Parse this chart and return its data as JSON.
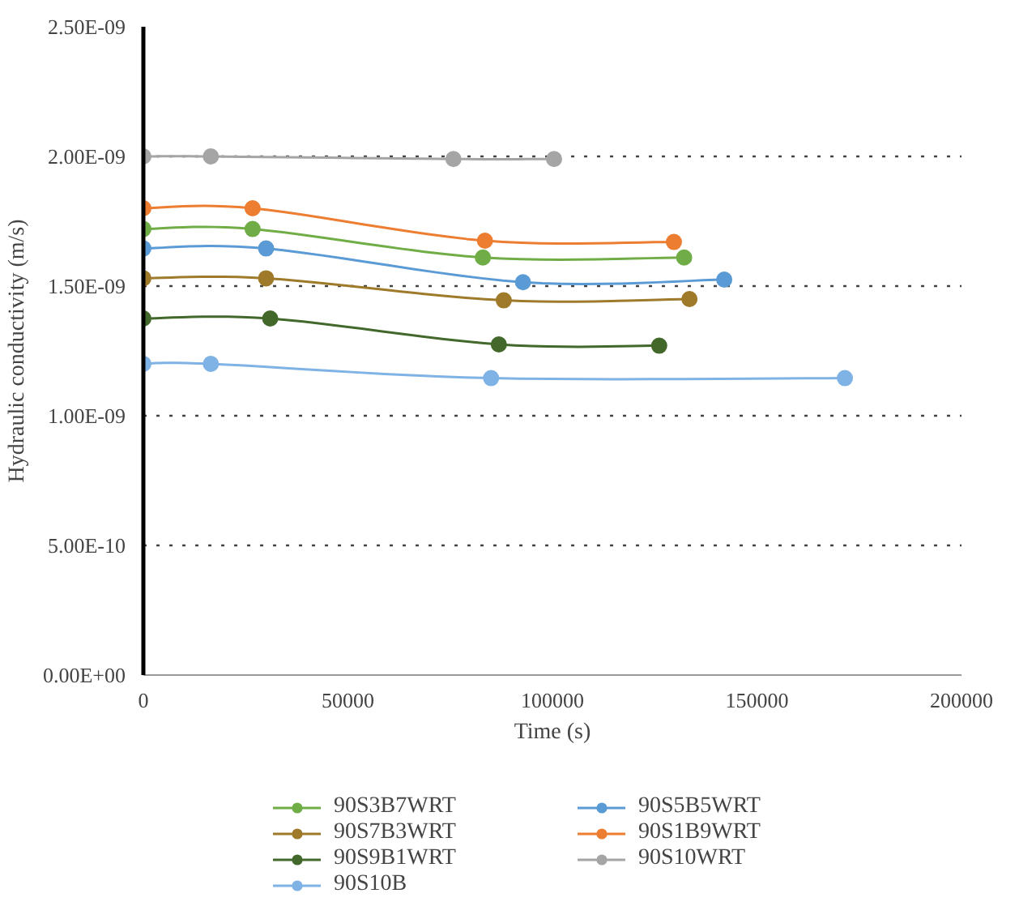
{
  "chart_data": {
    "type": "line",
    "xlabel": "Time (s)",
    "ylabel": "Hydraulic conductivity (m/s)",
    "xlim": [
      0,
      200000
    ],
    "xticks": [
      0,
      50000,
      100000,
      150000,
      200000
    ],
    "ylim": [
      0,
      2.5e-09
    ],
    "yticks": [
      {
        "value": 0,
        "label": "0.00E+00"
      },
      {
        "value": 5e-10,
        "label": "5.00E-10"
      },
      {
        "value": 1e-09,
        "label": "1.00E-09"
      },
      {
        "value": 1.5e-09,
        "label": "1.50E-09"
      },
      {
        "value": 2e-09,
        "label": "2.00E-09"
      },
      {
        "value": 2.5e-09,
        "label": "2.50E-09"
      }
    ],
    "grid": "y",
    "legend": "bottom",
    "marker": "circle",
    "line_style": "solid",
    "series": [
      {
        "name": "90S3B7WRT",
        "color": "#70ad47",
        "x": [
          0,
          26700,
          83000,
          132200
        ],
        "values": [
          1.72e-09,
          1.72e-09,
          1.61e-09,
          1.61e-09
        ]
      },
      {
        "name": "90S5B5WRT",
        "color": "#5b9bd5",
        "x": [
          0,
          30000,
          92800,
          142000
        ],
        "values": [
          1.645e-09,
          1.645e-09,
          1.515e-09,
          1.525e-09
        ]
      },
      {
        "name": "90S7B3WRT",
        "color": "#9e7a2a",
        "x": [
          0,
          30000,
          88100,
          133500
        ],
        "values": [
          1.53e-09,
          1.53e-09,
          1.445e-09,
          1.45e-09
        ]
      },
      {
        "name": "90S1B9WRT",
        "color": "#ed7d31",
        "x": [
          0,
          26700,
          83500,
          129700
        ],
        "values": [
          1.8e-09,
          1.8e-09,
          1.675e-09,
          1.67e-09
        ]
      },
      {
        "name": "90S9B1WRT",
        "color": "#43682b",
        "x": [
          0,
          31000,
          86900,
          126100
        ],
        "values": [
          1.375e-09,
          1.375e-09,
          1.275e-09,
          1.27e-09
        ]
      },
      {
        "name": "90S10WRT",
        "color": "#a5a5a5",
        "x": [
          0,
          16500,
          75800,
          100400
        ],
        "values": [
          2e-09,
          2e-09,
          1.99e-09,
          1.99e-09
        ]
      },
      {
        "name": "90S10B",
        "color": "#7fb2e5",
        "x": [
          0,
          16500,
          85000,
          171500
        ],
        "values": [
          1.2e-09,
          1.2e-09,
          1.145e-09,
          1.145e-09
        ]
      }
    ]
  }
}
